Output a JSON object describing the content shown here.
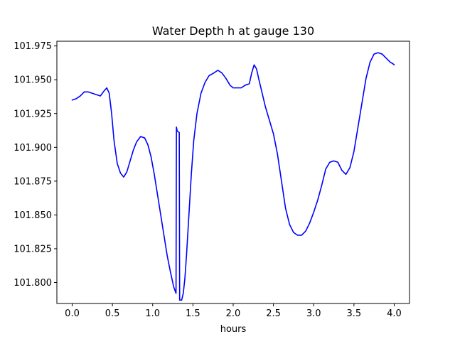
{
  "chart_data": {
    "type": "line",
    "title": "Water Depth h at gauge 130",
    "xlabel": "hours",
    "ylabel": "",
    "xlim": [
      -0.19,
      4.19
    ],
    "ylim": [
      101.7845,
      101.9785
    ],
    "xticks": [
      {
        "value": 0.0,
        "label": "0.0"
      },
      {
        "value": 0.5,
        "label": "0.5"
      },
      {
        "value": 1.0,
        "label": "1.0"
      },
      {
        "value": 1.5,
        "label": "1.5"
      },
      {
        "value": 2.0,
        "label": "2.0"
      },
      {
        "value": 2.5,
        "label": "2.5"
      },
      {
        "value": 3.0,
        "label": "3.0"
      },
      {
        "value": 3.5,
        "label": "3.5"
      },
      {
        "value": 4.0,
        "label": "4.0"
      }
    ],
    "yticks": [
      {
        "value": 101.8,
        "label": "101.800"
      },
      {
        "value": 101.825,
        "label": "101.825"
      },
      {
        "value": 101.85,
        "label": "101.850"
      },
      {
        "value": 101.875,
        "label": "101.875"
      },
      {
        "value": 101.9,
        "label": "101.900"
      },
      {
        "value": 101.925,
        "label": "101.925"
      },
      {
        "value": 101.95,
        "label": "101.950"
      },
      {
        "value": 101.975,
        "label": "101.975"
      }
    ],
    "grid": false,
    "legend": "none",
    "series": [
      {
        "color": "#0000ff",
        "points": [
          [
            0.0,
            101.935
          ],
          [
            0.05,
            101.936
          ],
          [
            0.1,
            101.938
          ],
          [
            0.15,
            101.941
          ],
          [
            0.2,
            101.941
          ],
          [
            0.25,
            101.94
          ],
          [
            0.3,
            101.939
          ],
          [
            0.35,
            101.938
          ],
          [
            0.4,
            101.942
          ],
          [
            0.43,
            101.944
          ],
          [
            0.46,
            101.94
          ],
          [
            0.49,
            101.925
          ],
          [
            0.52,
            101.905
          ],
          [
            0.56,
            101.888
          ],
          [
            0.6,
            101.881
          ],
          [
            0.64,
            101.878
          ],
          [
            0.68,
            101.882
          ],
          [
            0.72,
            101.89
          ],
          [
            0.76,
            101.898
          ],
          [
            0.8,
            101.904
          ],
          [
            0.85,
            101.908
          ],
          [
            0.9,
            101.907
          ],
          [
            0.94,
            101.902
          ],
          [
            0.98,
            101.893
          ],
          [
            1.02,
            101.88
          ],
          [
            1.06,
            101.865
          ],
          [
            1.1,
            101.85
          ],
          [
            1.14,
            101.835
          ],
          [
            1.18,
            101.82
          ],
          [
            1.22,
            101.808
          ],
          [
            1.26,
            101.797
          ],
          [
            1.29,
            101.792
          ],
          [
            1.295,
            101.915
          ],
          [
            1.305,
            101.912
          ],
          [
            1.33,
            101.911
          ],
          [
            1.335,
            101.787
          ],
          [
            1.36,
            101.787
          ],
          [
            1.38,
            101.792
          ],
          [
            1.4,
            101.803
          ],
          [
            1.42,
            101.82
          ],
          [
            1.45,
            101.85
          ],
          [
            1.48,
            101.88
          ],
          [
            1.51,
            101.905
          ],
          [
            1.55,
            101.925
          ],
          [
            1.6,
            101.94
          ],
          [
            1.65,
            101.948
          ],
          [
            1.7,
            101.953
          ],
          [
            1.76,
            101.955
          ],
          [
            1.81,
            101.957
          ],
          [
            1.86,
            101.955
          ],
          [
            1.91,
            101.951
          ],
          [
            1.96,
            101.946
          ],
          [
            2.0,
            101.944
          ],
          [
            2.05,
            101.944
          ],
          [
            2.1,
            101.944
          ],
          [
            2.15,
            101.946
          ],
          [
            2.2,
            101.947
          ],
          [
            2.23,
            101.955
          ],
          [
            2.26,
            101.961
          ],
          [
            2.29,
            101.958
          ],
          [
            2.32,
            101.95
          ],
          [
            2.36,
            101.94
          ],
          [
            2.4,
            101.93
          ],
          [
            2.45,
            101.92
          ],
          [
            2.5,
            101.91
          ],
          [
            2.55,
            101.895
          ],
          [
            2.6,
            101.875
          ],
          [
            2.65,
            101.855
          ],
          [
            2.7,
            101.843
          ],
          [
            2.75,
            101.837
          ],
          [
            2.8,
            101.835
          ],
          [
            2.85,
            101.835
          ],
          [
            2.9,
            101.838
          ],
          [
            2.95,
            101.844
          ],
          [
            3.0,
            101.852
          ],
          [
            3.05,
            101.861
          ],
          [
            3.1,
            101.872
          ],
          [
            3.15,
            101.884
          ],
          [
            3.2,
            101.889
          ],
          [
            3.25,
            101.89
          ],
          [
            3.3,
            101.889
          ],
          [
            3.35,
            101.883
          ],
          [
            3.4,
            101.88
          ],
          [
            3.45,
            101.885
          ],
          [
            3.5,
            101.897
          ],
          [
            3.55,
            101.915
          ],
          [
            3.6,
            101.933
          ],
          [
            3.65,
            101.951
          ],
          [
            3.7,
            101.963
          ],
          [
            3.75,
            101.969
          ],
          [
            3.8,
            101.97
          ],
          [
            3.85,
            101.969
          ],
          [
            3.9,
            101.966
          ],
          [
            3.95,
            101.963
          ],
          [
            3.98,
            101.962
          ],
          [
            4.0,
            101.961
          ]
        ]
      }
    ]
  }
}
